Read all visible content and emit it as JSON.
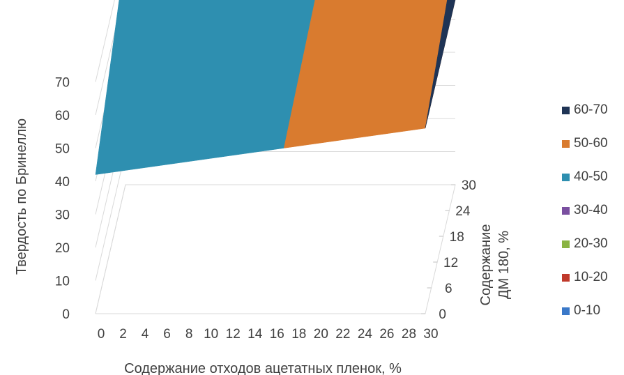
{
  "chart_data": {
    "type": "surface",
    "x_axis": {
      "label": "Содержание отходов ацетатных пленок, %",
      "ticks": [
        "0",
        "2",
        "4",
        "6",
        "8",
        "10",
        "12",
        "14",
        "16",
        "18",
        "20",
        "22",
        "24",
        "26",
        "28",
        "30"
      ]
    },
    "y_axis": {
      "label": "Содержание ДМ 180, %",
      "label_lines": [
        "Содержание",
        "ДМ 180, %"
      ],
      "ticks": [
        "0",
        "6",
        "12",
        "18",
        "24",
        "30"
      ]
    },
    "z_axis": {
      "label": "Твердость по Бринеллю",
      "ticks": [
        "0",
        "10",
        "20",
        "30",
        "40",
        "50",
        "60",
        "70"
      ],
      "range": [
        0,
        70
      ]
    },
    "grid": true,
    "legend_position": "right",
    "legend": [
      {
        "label": "60-70",
        "color": "#1f3455"
      },
      {
        "label": "50-60",
        "color": "#d97b2f"
      },
      {
        "label": "40-50",
        "color": "#2e8fb0"
      },
      {
        "label": "30-40",
        "color": "#7a4fa0"
      },
      {
        "label": "20-30",
        "color": "#8ab443"
      },
      {
        "label": "10-20",
        "color": "#c0392b"
      },
      {
        "label": "0-10",
        "color": "#3a78c8"
      }
    ],
    "surface": {
      "x": [
        0,
        30
      ],
      "series": [
        {
          "name": "0",
          "values": [
            42,
            56
          ]
        },
        {
          "name": "30",
          "values": [
            70,
            70
          ]
        }
      ]
    }
  }
}
